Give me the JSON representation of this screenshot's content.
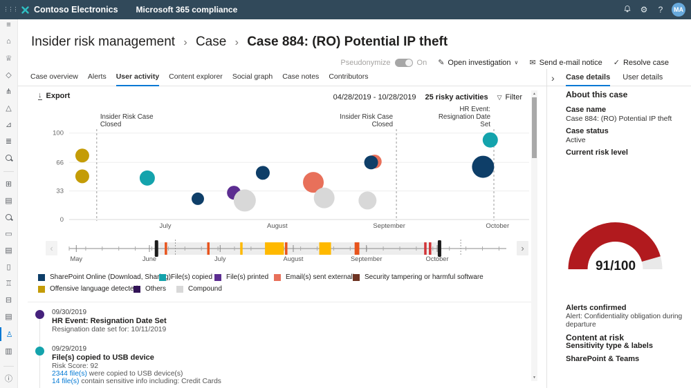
{
  "topbar": {
    "brand": "Contoso Electronics",
    "app": "Microsoft 365 compliance",
    "avatar": "MA",
    "help": "?"
  },
  "sidebar": {
    "items": [
      {
        "name": "menu",
        "glyph": "≡"
      },
      {
        "name": "home",
        "glyph": "⌂"
      },
      {
        "name": "compliance-manager",
        "glyph": "♕"
      },
      {
        "name": "data-classification",
        "glyph": "◇"
      },
      {
        "name": "data-connectors",
        "glyph": "⋔"
      },
      {
        "name": "alerts",
        "glyph": "△"
      },
      {
        "name": "reports",
        "glyph": "⊿"
      },
      {
        "name": "policies",
        "glyph": "≣"
      },
      {
        "name": "permissions",
        "glyph": "mag"
      },
      {
        "type": "divider"
      },
      {
        "name": "solutions-catalog",
        "glyph": "⊞"
      },
      {
        "name": "audit",
        "glyph": "▤"
      },
      {
        "name": "content-search",
        "glyph": "mag"
      },
      {
        "name": "communication-compliance",
        "glyph": "▭"
      },
      {
        "name": "data-loss-prevention",
        "glyph": "▤"
      },
      {
        "name": "data-subject-requests",
        "glyph": "▯"
      },
      {
        "name": "data-investigations",
        "glyph": "♖"
      },
      {
        "name": "information-governance",
        "glyph": "⊟"
      },
      {
        "name": "records-management",
        "glyph": "▤"
      },
      {
        "name": "insider-risk-management",
        "glyph": "♙",
        "active": true
      },
      {
        "name": "ediscovery",
        "glyph": "▥"
      },
      {
        "type": "divider"
      },
      {
        "name": "more-resources",
        "glyph": "ⓘ"
      }
    ]
  },
  "breadcrumb": {
    "parts": [
      "Insider risk management",
      "Case"
    ],
    "current": "Case 884: (RO) Potential IP theft",
    "separator": "›"
  },
  "actionbar": {
    "pseudonymize_label": "Pseudonymize",
    "toggle_state": "On",
    "open_investigation": "Open investigation",
    "send_email": "Send e-mail notice",
    "resolve": "Resolve case"
  },
  "tabs": {
    "items": [
      "Case overview",
      "Alerts",
      "User activity",
      "Content explorer",
      "Social graph",
      "Case notes",
      "Contributors"
    ],
    "active": "User activity"
  },
  "activity_header": {
    "export": "Export",
    "date_range": "04/28/2019 - 10/28/2019",
    "count_label": "25 risky activities",
    "filter": "Filter"
  },
  "chart_data": {
    "type": "scatter",
    "ylabel": "risk score",
    "ylim": [
      0,
      100
    ],
    "yticks": [
      0,
      33,
      66,
      100
    ],
    "x_months": [
      {
        "label": "July",
        "date": "2019-07-01"
      },
      {
        "label": "August",
        "date": "2019-08-01"
      },
      {
        "label": "September",
        "date": "2019-09-01"
      },
      {
        "label": "October",
        "date": "2019-10-01"
      }
    ],
    "categories": {
      "sharepoint": {
        "label": "SharePoint Online (Download, Sharing)",
        "color": "#0e3e68"
      },
      "files_copied": {
        "label": "File(s) copied",
        "color": "#14a3ac"
      },
      "files_printed": {
        "label": "File(s) printed",
        "color": "#5c2d91"
      },
      "email_external": {
        "label": "Email(s) sent externally",
        "color": "#e8705a"
      },
      "security_tampering": {
        "label": "Security tampering or harmful software",
        "color": "#6e3423"
      },
      "offensive_language": {
        "label": "Offensive language detected",
        "color": "#c49c07"
      },
      "others": {
        "label": "Others",
        "color": "#321457"
      },
      "compound": {
        "label": "Compound",
        "color": "#d8d8d8"
      }
    },
    "points": [
      {
        "date": "2019-06-08",
        "value": 74,
        "category": "offensive_language",
        "size": 10
      },
      {
        "date": "2019-06-08",
        "value": 50,
        "category": "offensive_language",
        "size": 10
      },
      {
        "date": "2019-06-26",
        "value": 48,
        "category": "files_copied",
        "size": 11
      },
      {
        "date": "2019-07-10",
        "value": 24,
        "category": "sharepoint",
        "size": 9
      },
      {
        "date": "2019-07-20",
        "value": 31,
        "category": "files_printed",
        "size": 10
      },
      {
        "date": "2019-07-23",
        "value": 22,
        "category": "compound",
        "size": 16
      },
      {
        "date": "2019-07-28",
        "value": 54,
        "category": "sharepoint",
        "size": 10
      },
      {
        "date": "2019-08-11",
        "value": 43,
        "category": "email_external",
        "size": 15
      },
      {
        "date": "2019-08-14",
        "value": 25,
        "category": "compound",
        "size": 15
      },
      {
        "date": "2019-08-26",
        "value": 22,
        "category": "compound",
        "size": 13
      },
      {
        "date": "2019-08-28",
        "value": 67,
        "category": "email_external",
        "size": 10
      },
      {
        "date": "2019-08-27",
        "value": 66,
        "category": "sharepoint",
        "size": 10
      },
      {
        "date": "2019-09-29",
        "value": 92,
        "category": "files_copied",
        "size": 11
      },
      {
        "date": "2019-09-27",
        "value": 61,
        "category": "sharepoint",
        "size": 16
      }
    ],
    "annotations": [
      {
        "date": "2019-06-12",
        "align": "left",
        "lines": [
          "Insider Risk Case",
          "Closed"
        ]
      },
      {
        "date": "2019-09-03",
        "align": "right",
        "lines": [
          "Insider Risk Case",
          "Closed"
        ]
      },
      {
        "date": "2019-09-30",
        "align": "right",
        "lines": [
          "HR Event:",
          "Resignation Date",
          "Set"
        ]
      }
    ],
    "legend_rows": [
      [
        "sharepoint",
        "files_copied",
        "files_printed",
        "email_external",
        "security_tampering"
      ],
      [
        "offensive_language",
        "others",
        "compound"
      ]
    ]
  },
  "timeline": {
    "months": [
      {
        "label": "May",
        "date": "2019-05-01"
      },
      {
        "label": "June",
        "date": "2019-06-01"
      },
      {
        "label": "July",
        "date": "2019-07-01"
      },
      {
        "label": "August",
        "date": "2019-08-01"
      },
      {
        "label": "September",
        "date": "2019-09-01"
      },
      {
        "label": "October",
        "date": "2019-10-01"
      }
    ],
    "selection": {
      "start": "2019-06-04",
      "end": "2019-10-02"
    },
    "marks": [
      {
        "date": "2019-06-08",
        "color": "#e8541d"
      },
      {
        "date": "2019-06-26",
        "color": "#e8541d"
      },
      {
        "date": "2019-07-10",
        "color": "#ffb900"
      },
      {
        "date": "2019-07-20",
        "span_days": 8,
        "color": "#ffb900"
      },
      {
        "date": "2019-07-29",
        "color": "#e8541d"
      },
      {
        "date": "2019-08-12",
        "span_days": 5,
        "color": "#ffb900"
      },
      {
        "date": "2019-08-27",
        "span_days": 2,
        "color": "#e8541d"
      },
      {
        "date": "2019-09-26",
        "color": "#d13438"
      },
      {
        "date": "2019-09-28",
        "color": "#d13438"
      }
    ],
    "dashed_marks": [
      "2019-06-12",
      "2019-10-11"
    ]
  },
  "activity_feed": {
    "items": [
      {
        "dot_color": "#45217c",
        "date": "09/30/2019",
        "title": "HR Event: Resignation Date Set",
        "lines": [
          {
            "text": "Resignation date set for: 10/11/2019"
          }
        ]
      },
      {
        "dot_color": "#14a3ac",
        "date": "09/29/2019",
        "title": "File(s) copied to USB device",
        "lines": [
          {
            "text": "Risk Score: 92"
          },
          {
            "link": "2344 file(s)",
            "text": " were copied to USB device(s)"
          },
          {
            "link": "14 file(s)",
            "text": " contain sensitive info including: Credit Cards"
          }
        ]
      }
    ]
  },
  "right_panel": {
    "tabs": [
      "Case details",
      "User details"
    ],
    "active": "Case details",
    "about_title": "About this case",
    "case_name_label": "Case name",
    "case_name": "Case 884: (RO) Potential IP theft",
    "case_status_label": "Case status",
    "case_status": "Active",
    "risk_level_label": "Current risk level",
    "risk_score": {
      "value": 91,
      "max": 100,
      "display": "91/100",
      "color": "#b11a1e",
      "track": "#e9e9e9"
    },
    "alerts_title": "Alerts confirmed",
    "alerts_text": "Alert: Confidentiality obligation during\ndeparture",
    "content_title": "Content at risk",
    "sensitivity": "Sensitivity type & labels",
    "locations": "SharePoint & Teams"
  }
}
